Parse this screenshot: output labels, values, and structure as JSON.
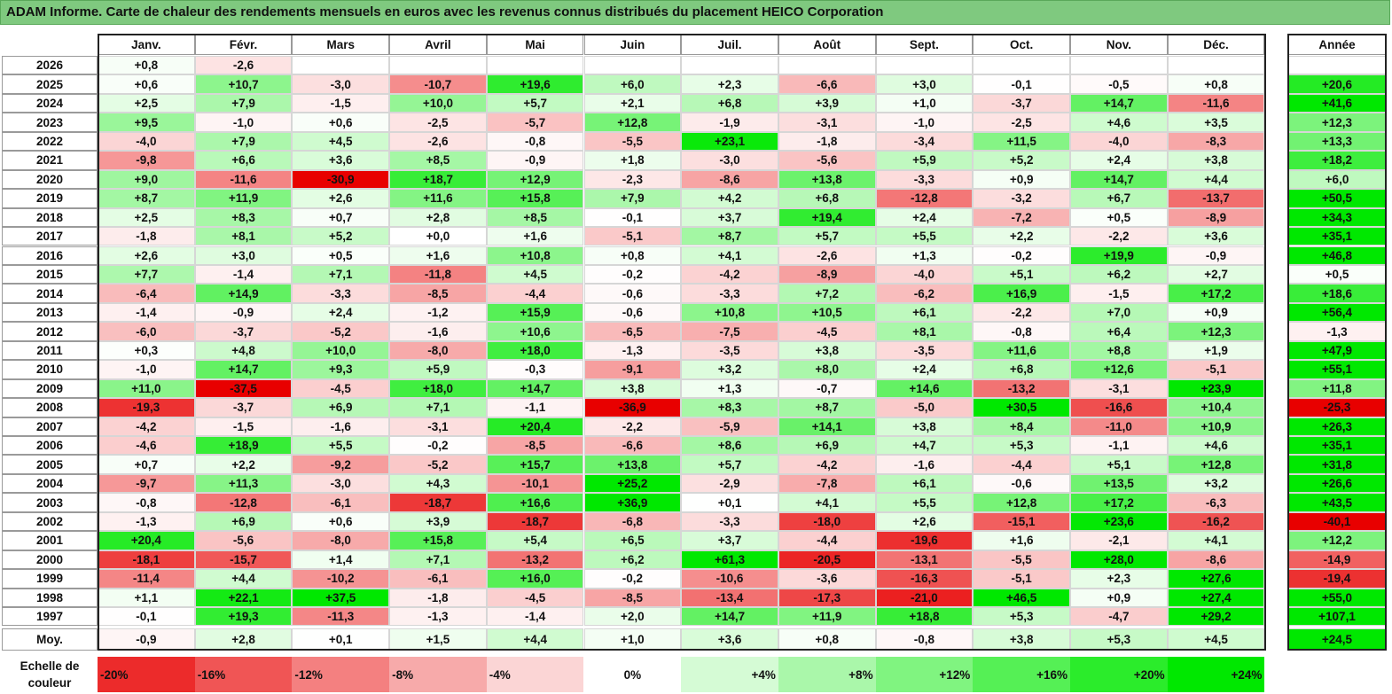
{
  "title": "ADAM Informe. Carte de chaleur des rendements mensuels en euros avec les revenus connus distribués du placement HEICO Corporation",
  "chart_data": {
    "type": "heatmap",
    "title": "ADAM Informe. Carte de chaleur des rendements mensuels en euros avec les revenus connus distribués du placement HEICO Corporation",
    "months": [
      "Janv.",
      "Févr.",
      "Mars",
      "Avril",
      "Mai",
      "Juin",
      "Juil.",
      "Août",
      "Sept.",
      "Oct.",
      "Nov.",
      "Déc."
    ],
    "year_header": "Année",
    "rows": [
      {
        "label": "2026",
        "values": [
          "+0,8",
          "-2,6",
          "",
          "",
          "",
          "",
          "",
          "",
          "",
          "",
          "",
          ""
        ],
        "year": ""
      },
      {
        "label": "2025",
        "values": [
          "+0,6",
          "+10,7",
          "-3,0",
          "-10,7",
          "+19,6",
          "+6,0",
          "+2,3",
          "-6,6",
          "+3,0",
          "-0,1",
          "-0,5",
          "+0,8"
        ],
        "year": "+20,6"
      },
      {
        "label": "2024",
        "values": [
          "+2,5",
          "+7,9",
          "-1,5",
          "+10,0",
          "+5,7",
          "+2,1",
          "+6,8",
          "+3,9",
          "+1,0",
          "-3,7",
          "+14,7",
          "-11,6"
        ],
        "year": "+41,6"
      },
      {
        "label": "2023",
        "values": [
          "+9,5",
          "-1,0",
          "+0,6",
          "-2,5",
          "-5,7",
          "+12,8",
          "-1,9",
          "-3,1",
          "-1,0",
          "-2,5",
          "+4,6",
          "+3,5"
        ],
        "year": "+12,3"
      },
      {
        "label": "2022",
        "values": [
          "-4,0",
          "+7,9",
          "+4,5",
          "-2,6",
          "-0,8",
          "-5,5",
          "+23,1",
          "-1,8",
          "-3,4",
          "+11,5",
          "-4,0",
          "-8,3"
        ],
        "year": "+13,3"
      },
      {
        "label": "2021",
        "values": [
          "-9,8",
          "+6,6",
          "+3,6",
          "+8,5",
          "-0,9",
          "+1,8",
          "-3,0",
          "-5,6",
          "+5,9",
          "+5,2",
          "+2,4",
          "+3,8"
        ],
        "year": "+18,2"
      },
      {
        "label": "2020",
        "values": [
          "+9,0",
          "-11,6",
          "-30,9",
          "+18,7",
          "+12,9",
          "-2,3",
          "-8,6",
          "+13,8",
          "-3,3",
          "+0,9",
          "+14,7",
          "+4,4"
        ],
        "year": "+6,0"
      },
      {
        "label": "2019",
        "values": [
          "+8,7",
          "+11,9",
          "+2,6",
          "+11,6",
          "+15,8",
          "+7,9",
          "+4,2",
          "+6,8",
          "-12,8",
          "-3,2",
          "+6,7",
          "-13,7"
        ],
        "year": "+50,5"
      },
      {
        "label": "2018",
        "values": [
          "+2,5",
          "+8,3",
          "+0,7",
          "+2,8",
          "+8,5",
          "-0,1",
          "+3,7",
          "+19,4",
          "+2,4",
          "-7,2",
          "+0,5",
          "-8,9"
        ],
        "year": "+34,3"
      },
      {
        "label": "2017",
        "values": [
          "-1,8",
          "+8,1",
          "+5,2",
          "+0,0",
          "+1,6",
          "-5,1",
          "+8,7",
          "+5,7",
          "+5,5",
          "+2,2",
          "-2,2",
          "+3,6"
        ],
        "year": "+35,1"
      },
      {
        "label": "2016",
        "values": [
          "+2,6",
          "+3,0",
          "+0,5",
          "+1,6",
          "+10,8",
          "+0,8",
          "+4,1",
          "-2,6",
          "+1,3",
          "-0,2",
          "+19,9",
          "-0,9"
        ],
        "year": "+46,8"
      },
      {
        "label": "2015",
        "values": [
          "+7,7",
          "-1,4",
          "+7,1",
          "-11,8",
          "+4,5",
          "-0,2",
          "-4,2",
          "-8,9",
          "-4,0",
          "+5,1",
          "+6,2",
          "+2,7"
        ],
        "year": "+0,5"
      },
      {
        "label": "2014",
        "values": [
          "-6,4",
          "+14,9",
          "-3,3",
          "-8,5",
          "-4,4",
          "-0,6",
          "-3,3",
          "+7,2",
          "-6,2",
          "+16,9",
          "-1,5",
          "+17,2"
        ],
        "year": "+18,6"
      },
      {
        "label": "2013",
        "values": [
          "-1,4",
          "-0,9",
          "+2,4",
          "-1,2",
          "+15,9",
          "-0,6",
          "+10,8",
          "+10,5",
          "+6,1",
          "-2,2",
          "+7,0",
          "+0,9"
        ],
        "year": "+56,4"
      },
      {
        "label": "2012",
        "values": [
          "-6,0",
          "-3,7",
          "-5,2",
          "-1,6",
          "+10,6",
          "-6,5",
          "-7,5",
          "-4,5",
          "+8,1",
          "-0,8",
          "+6,4",
          "+12,3"
        ],
        "year": "-1,3"
      },
      {
        "label": "2011",
        "values": [
          "+0,3",
          "+4,8",
          "+10,0",
          "-8,0",
          "+18,0",
          "-1,3",
          "-3,5",
          "+3,8",
          "-3,5",
          "+11,6",
          "+8,8",
          "+1,9"
        ],
        "year": "+47,9"
      },
      {
        "label": "2010",
        "values": [
          "-1,0",
          "+14,7",
          "+9,3",
          "+5,9",
          "-0,3",
          "-9,1",
          "+3,2",
          "+8,0",
          "+2,4",
          "+6,8",
          "+12,6",
          "-5,1"
        ],
        "year": "+55,1"
      },
      {
        "label": "2009",
        "values": [
          "+11,0",
          "-37,5",
          "-4,5",
          "+18,0",
          "+14,7",
          "+3,8",
          "+1,3",
          "-0,7",
          "+14,6",
          "-13,2",
          "-3,1",
          "+23,9"
        ],
        "year": "+11,8"
      },
      {
        "label": "2008",
        "values": [
          "-19,3",
          "-3,7",
          "+6,9",
          "+7,1",
          "-1,1",
          "-36,9",
          "+8,3",
          "+8,7",
          "-5,0",
          "+30,5",
          "-16,6",
          "+10,4"
        ],
        "year": "-25,3"
      },
      {
        "label": "2007",
        "values": [
          "-4,2",
          "-1,5",
          "-1,6",
          "-3,1",
          "+20,4",
          "-2,2",
          "-5,9",
          "+14,1",
          "+3,8",
          "+8,4",
          "-11,0",
          "+10,9"
        ],
        "year": "+26,3"
      },
      {
        "label": "2006",
        "values": [
          "-4,6",
          "+18,9",
          "+5,5",
          "-0,2",
          "-8,5",
          "-6,6",
          "+8,6",
          "+6,9",
          "+4,7",
          "+5,3",
          "-1,1",
          "+4,6"
        ],
        "year": "+35,1"
      },
      {
        "label": "2005",
        "values": [
          "+0,7",
          "+2,2",
          "-9,2",
          "-5,2",
          "+15,7",
          "+13,8",
          "+5,7",
          "-4,2",
          "-1,6",
          "-4,4",
          "+5,1",
          "+12,8"
        ],
        "year": "+31,8"
      },
      {
        "label": "2004",
        "values": [
          "-9,7",
          "+11,3",
          "-3,0",
          "+4,3",
          "-10,1",
          "+25,2",
          "-2,9",
          "-7,8",
          "+6,1",
          "-0,6",
          "+13,5",
          "+3,2"
        ],
        "year": "+26,6"
      },
      {
        "label": "2003",
        "values": [
          "-0,8",
          "-12,8",
          "-6,1",
          "-18,7",
          "+16,6",
          "+36,9",
          "+0,1",
          "+4,1",
          "+5,5",
          "+12,8",
          "+17,2",
          "-6,3"
        ],
        "year": "+43,5"
      },
      {
        "label": "2002",
        "values": [
          "-1,3",
          "+6,9",
          "+0,6",
          "+3,9",
          "-18,7",
          "-6,8",
          "-3,3",
          "-18,0",
          "+2,6",
          "-15,1",
          "+23,6",
          "-16,2"
        ],
        "year": "-40,1"
      },
      {
        "label": "2001",
        "values": [
          "+20,4",
          "-5,6",
          "-8,0",
          "+15,8",
          "+5,4",
          "+6,5",
          "+3,7",
          "-4,4",
          "-19,6",
          "+1,6",
          "-2,1",
          "+4,1"
        ],
        "year": "+12,2"
      },
      {
        "label": "2000",
        "values": [
          "-18,1",
          "-15,7",
          "+1,4",
          "+7,1",
          "-13,2",
          "+6,2",
          "+61,3",
          "-20,5",
          "-13,1",
          "-5,5",
          "+28,0",
          "-8,6"
        ],
        "year": "-14,9"
      },
      {
        "label": "1999",
        "values": [
          "-11,4",
          "+4,4",
          "-10,2",
          "-6,1",
          "+16,0",
          "-0,2",
          "-10,6",
          "-3,6",
          "-16,3",
          "-5,1",
          "+2,3",
          "+27,6"
        ],
        "year": "-19,4"
      },
      {
        "label": "1998",
        "values": [
          "+1,1",
          "+22,1",
          "+37,5",
          "-1,8",
          "-4,5",
          "-8,5",
          "-13,4",
          "-17,3",
          "-21,0",
          "+46,5",
          "+0,9",
          "+27,4"
        ],
        "year": "+55,0"
      },
      {
        "label": "1997",
        "values": [
          "-0,1",
          "+19,3",
          "-11,3",
          "-1,3",
          "-1,4",
          "+2,0",
          "+14,7",
          "+11,9",
          "+18,8",
          "+5,3",
          "-4,7",
          "+29,2"
        ],
        "year": "+107,1"
      }
    ],
    "average": {
      "label": "Moy.",
      "values": [
        "-0,9",
        "+2,8",
        "+0,1",
        "+1,5",
        "+4,4",
        "+1,0",
        "+3,6",
        "+0,8",
        "-0,8",
        "+3,8",
        "+5,3",
        "+4,5"
      ],
      "year": "+24,5"
    },
    "scale": {
      "label": "Echelle de couleur",
      "steps": [
        "-20%",
        "-16%",
        "-12%",
        "-8%",
        "-4%",
        "0%",
        "+4%",
        "+8%",
        "+12%",
        "+16%",
        "+20%",
        "+24%"
      ]
    },
    "colors": {
      "negative": "#e80000",
      "neutral": "#ffffff",
      "positive": "#00e800",
      "title_bar": "#7fc97f"
    }
  }
}
